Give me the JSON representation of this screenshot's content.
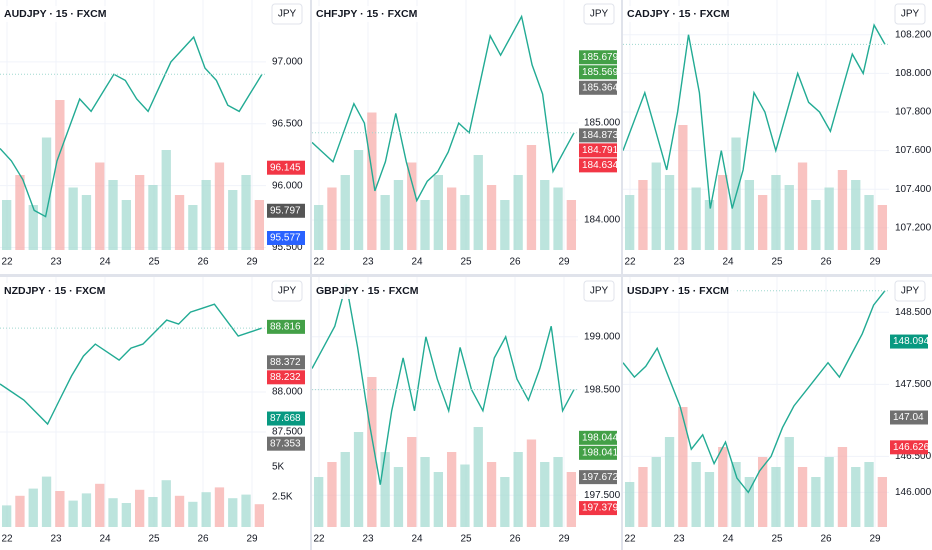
{
  "panels": [
    {
      "title": "AUDJPY · 15 · FXCM",
      "currency": "JPY",
      "categories": [
        "22",
        "23",
        "24",
        "25",
        "26",
        "29"
      ],
      "ylim": [
        95.48,
        97.5
      ],
      "yticks": [
        {
          "value": 97,
          "label": "97.000"
        },
        {
          "value": 96.5,
          "label": "96.500"
        },
        {
          "value": 96,
          "label": "96.000"
        },
        {
          "value": 95.5,
          "label": "95.500"
        }
      ],
      "price": [
        96.3,
        96.2,
        96.05,
        95.8,
        95.75,
        96.2,
        96.45,
        96.7,
        96.6,
        96.75,
        96.9,
        96.85,
        96.7,
        96.6,
        96.8,
        97.0,
        97.1,
        97.2,
        96.95,
        96.85,
        96.65,
        96.6,
        96.75,
        96.9
      ],
      "badges": [
        {
          "value": 96.145,
          "color": "#f23645"
        },
        {
          "value": 95.797,
          "color": "#555555"
        },
        {
          "value": 95.577,
          "color": "#2962ff"
        }
      ],
      "volume": [
        20,
        30,
        18,
        45,
        60,
        25,
        22,
        35,
        28,
        20,
        30,
        26,
        40,
        22,
        18,
        28,
        35,
        24,
        30,
        20
      ],
      "vlim": [
        0,
        100
      ]
    },
    {
      "title": "CHFJPY · 15 · FXCM",
      "currency": "JPY",
      "categories": [
        "22",
        "23",
        "24",
        "25",
        "26",
        "29"
      ],
      "ylim": [
        183.69,
        186.27
      ],
      "yticks": [
        {
          "value": 185,
          "label": "185.000"
        },
        {
          "value": 184,
          "label": "184.000"
        }
      ],
      "price": [
        184.8,
        184.7,
        184.6,
        184.9,
        185.2,
        185.0,
        184.3,
        184.6,
        185.1,
        184.6,
        184.2,
        184.4,
        184.5,
        184.7,
        185.0,
        184.9,
        185.4,
        185.9,
        185.7,
        185.9,
        186.1,
        185.6,
        185.3,
        184.5,
        184.7,
        184.9
      ],
      "badges": [
        {
          "value": 185.679,
          "color": "#43a047"
        },
        {
          "value": 185.569,
          "color": "#43a047"
        },
        {
          "value": 185.364,
          "color": "#707070"
        },
        {
          "value": 184.873,
          "color": "#707070"
        },
        {
          "value": 184.791,
          "color": "#f23645"
        },
        {
          "value": 184.634,
          "color": "#f23645"
        }
      ],
      "volume": [
        18,
        25,
        30,
        40,
        55,
        22,
        28,
        35,
        20,
        30,
        25,
        22,
        38,
        26,
        20,
        30,
        42,
        28,
        25,
        20
      ],
      "vlim": [
        0,
        100
      ]
    },
    {
      "title": "CADJPY · 15 · FXCM",
      "currency": "JPY",
      "categories": [
        "22",
        "23",
        "24",
        "25",
        "26",
        "29"
      ],
      "ylim": [
        107.085,
        108.38
      ],
      "yticks": [
        {
          "value": 108.2,
          "label": "108.200"
        },
        {
          "value": 108,
          "label": "108.000"
        },
        {
          "value": 107.8,
          "label": "107.800"
        },
        {
          "value": 107.6,
          "label": "107.600"
        },
        {
          "value": 107.4,
          "label": "107.400"
        },
        {
          "value": 107.2,
          "label": "107.200"
        }
      ],
      "price": [
        107.6,
        107.75,
        107.9,
        107.7,
        107.5,
        107.8,
        108.2,
        107.9,
        107.3,
        107.6,
        107.3,
        107.5,
        107.9,
        107.8,
        107.6,
        107.8,
        108.0,
        107.85,
        107.8,
        107.7,
        107.9,
        108.1,
        108.0,
        108.25,
        108.15
      ],
      "badges": [],
      "volume": [
        22,
        28,
        35,
        30,
        50,
        25,
        20,
        30,
        45,
        28,
        22,
        30,
        26,
        35,
        20,
        25,
        32,
        28,
        22,
        18
      ],
      "vlim": [
        0,
        100
      ]
    },
    {
      "title": "NZDJPY · 15 · FXCM",
      "currency": "JPY",
      "categories": [
        "22",
        "23",
        "24",
        "25",
        "26",
        "29"
      ],
      "ylim": [
        86.31,
        89.44
      ],
      "yticks": [
        {
          "value": 88,
          "label": "88.000"
        },
        {
          "value": 87.5,
          "label": "87.500"
        }
      ],
      "price": [
        88.1,
        88.0,
        87.9,
        87.75,
        87.6,
        87.9,
        88.2,
        88.45,
        88.6,
        88.5,
        88.4,
        88.55,
        88.6,
        88.75,
        88.9,
        88.85,
        89.0,
        89.05,
        89.1,
        88.9,
        88.7,
        88.75,
        88.8
      ],
      "badges": [
        {
          "value": 88.816,
          "color": "#43a047"
        },
        {
          "value": 88.372,
          "color": "#707070"
        },
        {
          "value": 88.232,
          "color": "#f23645"
        },
        {
          "value": 87.668,
          "color": "#089981"
        },
        {
          "value": 87.353,
          "color": "#707070"
        }
      ],
      "volume": [
        1800,
        2600,
        3200,
        4200,
        3000,
        2200,
        2800,
        3600,
        2400,
        2000,
        3100,
        2500,
        3900,
        2600,
        2100,
        2900,
        3300,
        2400,
        2700,
        1900
      ],
      "vlim": [
        0,
        20833
      ],
      "volume_ticks": [
        {
          "value": 5000,
          "label": "5K"
        },
        {
          "value": 2500,
          "label": "2.5K"
        }
      ]
    },
    {
      "title": "GBPJPY · 15 · FXCM",
      "currency": "JPY",
      "categories": [
        "22",
        "23",
        "24",
        "25",
        "26",
        "29"
      ],
      "ylim": [
        197.2,
        199.566
      ],
      "yticks": [
        {
          "value": 199,
          "label": "199.000"
        },
        {
          "value": 198.5,
          "label": "198.500"
        },
        {
          "value": 197.5,
          "label": "197.500"
        }
      ],
      "price": [
        198.7,
        198.9,
        199.1,
        199.5,
        198.9,
        198.2,
        197.6,
        198.3,
        198.8,
        198.3,
        199.0,
        198.6,
        198.3,
        198.9,
        198.5,
        198.3,
        198.8,
        199.0,
        198.6,
        198.4,
        198.7,
        199.1,
        198.3,
        198.5
      ],
      "badges": [
        {
          "value": 198.044,
          "color": "#43a047"
        },
        {
          "value": 198.041,
          "color": "#43a047"
        },
        {
          "value": 197.672,
          "color": "#707070"
        },
        {
          "value": 197.379,
          "color": "#f23645"
        }
      ],
      "volume": [
        20,
        26,
        30,
        38,
        60,
        30,
        24,
        36,
        28,
        22,
        30,
        25,
        40,
        26,
        20,
        30,
        35,
        26,
        28,
        22
      ],
      "vlim": [
        0,
        100
      ]
    },
    {
      "title": "USDJPY · 15 · FXCM",
      "currency": "JPY",
      "categories": [
        "22",
        "23",
        "24",
        "25",
        "26",
        "29"
      ],
      "ylim": [
        145.52,
        148.99
      ],
      "yticks": [
        {
          "value": 148.5,
          "label": "148.500"
        },
        {
          "value": 147.5,
          "label": "147.500"
        },
        {
          "value": 146.5,
          "label": "146.500"
        },
        {
          "value": 146,
          "label": "146.000"
        }
      ],
      "price": [
        147.8,
        147.6,
        147.75,
        148.0,
        147.6,
        147.2,
        146.6,
        146.8,
        146.4,
        146.7,
        146.2,
        146.0,
        146.3,
        146.5,
        146.9,
        147.2,
        147.4,
        147.6,
        147.8,
        147.6,
        147.9,
        148.2,
        148.6,
        148.8
      ],
      "badges": [
        {
          "value": 148.094,
          "color": "#089981"
        },
        {
          "value": 147.04,
          "color": "#707070"
        },
        {
          "value": 146.626,
          "color": "#f23645"
        }
      ],
      "volume": [
        18,
        24,
        28,
        36,
        48,
        26,
        22,
        32,
        26,
        20,
        28,
        24,
        36,
        24,
        20,
        28,
        32,
        24,
        26,
        20
      ],
      "vlim": [
        0,
        100
      ]
    }
  ]
}
